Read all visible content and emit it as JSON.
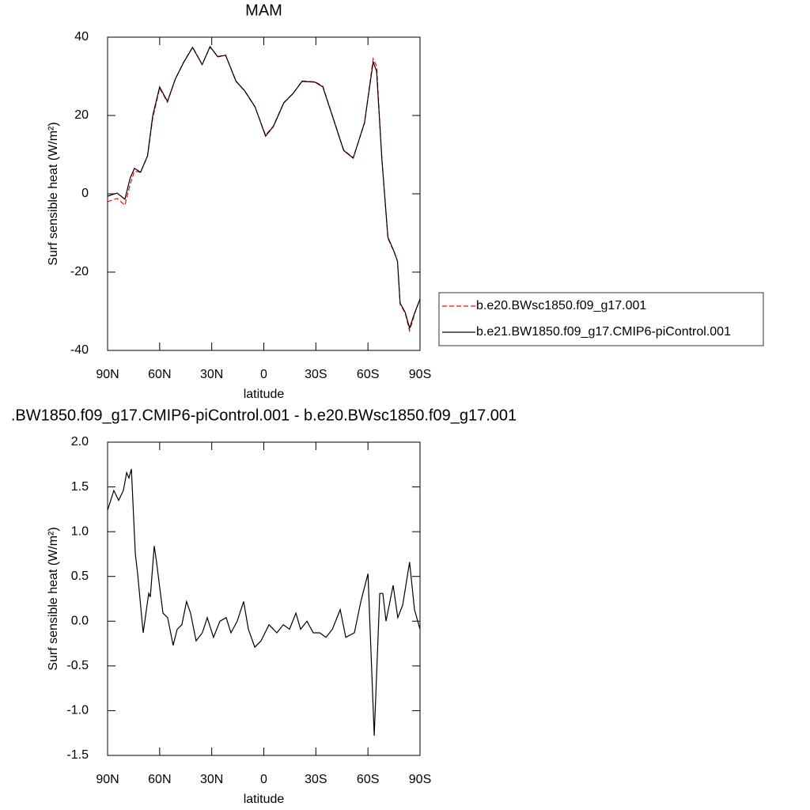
{
  "chart_data": [
    {
      "type": "line",
      "title": "MAM",
      "x_label": "latitude",
      "y_label": "Surf sensible heat (W/m²)",
      "x": [
        90,
        84.5,
        80,
        77,
        74.5,
        71,
        67,
        64,
        60,
        55.5,
        51,
        46,
        41,
        35.5,
        31,
        26.5,
        22,
        16,
        11,
        5,
        -1,
        -5.5,
        -11.5,
        -17,
        -22,
        -29.5,
        -34,
        -40,
        -46,
        -51.5,
        -58,
        -63,
        -65,
        -68,
        -71.5,
        -75,
        -77,
        -78.5,
        -81.5,
        -84,
        -87,
        -90
      ],
      "xlim": [
        90,
        -90
      ],
      "xticks": [
        {
          "value": 90,
          "label": "90N"
        },
        {
          "value": 60,
          "label": "60N"
        },
        {
          "value": 30,
          "label": "30N"
        },
        0,
        {
          "value": -30,
          "label": "30S"
        },
        {
          "value": -60,
          "label": "60S"
        },
        {
          "value": -90,
          "label": "90S"
        }
      ],
      "ylim": [
        -40,
        40
      ],
      "yticks": [
        -40,
        -20,
        0,
        20,
        40
      ],
      "legend": "right",
      "series": [
        {
          "name": "b.e20.BWsc1850.f09_g17.001",
          "color": "#ff0000",
          "style": "dashed",
          "values": [
            -2,
            -1.2,
            -2.9,
            2.4,
            5.8,
            5.5,
            9.6,
            19.3,
            27,
            23.4,
            29.3,
            33.8,
            37.5,
            33,
            37.5,
            35.1,
            35.4,
            28.8,
            26.2,
            22.1,
            15,
            17.3,
            23.3,
            25.7,
            28.8,
            28.6,
            27.5,
            19.3,
            11.2,
            9.2,
            18,
            34.5,
            32.6,
            9,
            -11.4,
            -14.8,
            -17.3,
            -28.2,
            -30.5,
            -35,
            -30.5,
            -26.8
          ]
        },
        {
          "name": "b.e21.BW1850.f09_g17.CMIP6-piControl.001",
          "color": "#000000",
          "style": "solid",
          "values": [
            -0.6,
            0.2,
            -1.4,
            4,
            6.5,
            5.5,
            9.7,
            20,
            27.3,
            23.6,
            29.3,
            33.7,
            37.4,
            33,
            37.6,
            35,
            35.4,
            28.7,
            26.3,
            22.2,
            14.7,
            17.2,
            23.2,
            25.7,
            28.7,
            28.5,
            27.3,
            19.2,
            11.1,
            9.1,
            18.2,
            33.7,
            31.3,
            9.1,
            -11.1,
            -14.7,
            -17.2,
            -27.9,
            -30.3,
            -34.3,
            -30.3,
            -26.9
          ]
        }
      ]
    },
    {
      "type": "line",
      "title": ".BW1850.f09_g17.CMIP6-piControl.001 - b.e20.BWsc1850.f09_g17.001",
      "x_label": "latitude",
      "y_label": "Surf sensible heat (W/m²)",
      "x": [
        90,
        86.4,
        83.6,
        80.9,
        79,
        77.7,
        76.3,
        74,
        72.7,
        69.5,
        66.3,
        65.4,
        63.1,
        61.8,
        58.1,
        55.4,
        52.2,
        49.9,
        47.2,
        44.5,
        42.2,
        39,
        35.4,
        32.6,
        29,
        25.3,
        21.7,
        18.9,
        15.3,
        11.6,
        8.9,
        5.2,
        1.6,
        -3,
        -7.5,
        -11.2,
        -14.8,
        -18.5,
        -21.2,
        -24.9,
        -28.5,
        -32.2,
        -35.8,
        -39.5,
        -44,
        -47.2,
        -52.2,
        -55.9,
        -60,
        -63.6,
        -66.8,
        -68.6,
        -70.4,
        -74.5,
        -77.2,
        -80,
        -84,
        -86.8,
        -90
      ],
      "values": [
        1.24,
        1.46,
        1.35,
        1.46,
        1.66,
        1.6,
        1.7,
        0.75,
        0.53,
        -0.13,
        0.31,
        0.27,
        0.84,
        0.66,
        0.09,
        0.04,
        -0.27,
        -0.09,
        -0.04,
        0.22,
        0.09,
        -0.22,
        -0.13,
        0.04,
        -0.18,
        0,
        0.04,
        -0.13,
        0,
        0.22,
        -0.09,
        -0.29,
        -0.22,
        -0.04,
        -0.13,
        -0.04,
        -0.09,
        0.09,
        -0.09,
        0,
        -0.13,
        -0.13,
        -0.18,
        -0.09,
        0.13,
        -0.18,
        -0.13,
        0.22,
        0.53,
        -1.28,
        0.31,
        0.31,
        0,
        0.4,
        0.04,
        0.18,
        0.66,
        0.13,
        -0.09
      ],
      "color": "#000000",
      "xlim": [
        90,
        -90
      ],
      "xticks": [
        {
          "value": 90,
          "label": "90N"
        },
        {
          "value": 60,
          "label": "60N"
        },
        {
          "value": 30,
          "label": "30N"
        },
        0,
        {
          "value": -30,
          "label": "30S"
        },
        {
          "value": -60,
          "label": "60S"
        },
        {
          "value": -90,
          "label": "90S"
        }
      ],
      "ylim": [
        -1.5,
        2.0
      ],
      "yticks": [
        -1.5,
        {
          "value": -1,
          "label": "-1.0"
        },
        -0.5,
        {
          "value": 0,
          "label": "0.0"
        },
        0.5,
        {
          "value": 1,
          "label": "1.0"
        },
        1.5,
        {
          "value": 2,
          "label": "2.0"
        }
      ]
    }
  ]
}
